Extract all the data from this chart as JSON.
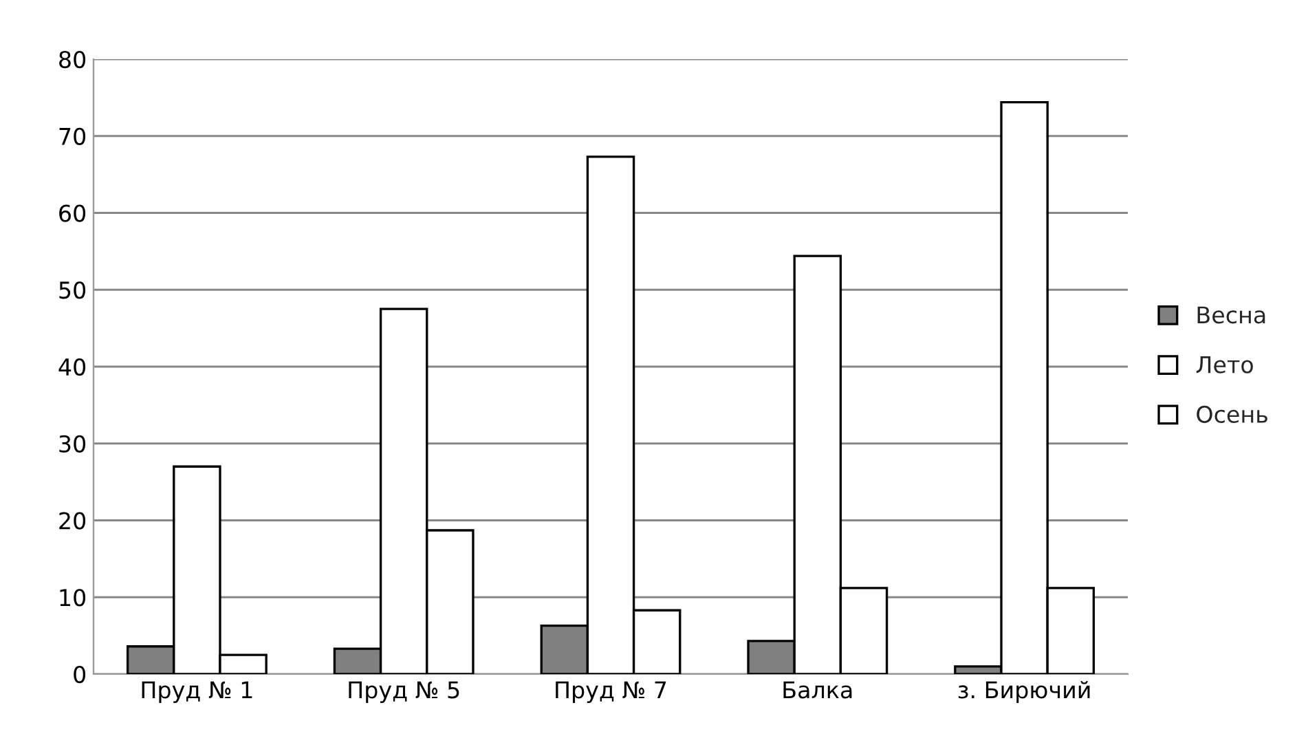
{
  "chart_data": {
    "type": "bar",
    "categories": [
      "Пруд № 1",
      "Пруд № 5",
      "Пруд № 7",
      "Балка",
      "з. Бирючий"
    ],
    "series": [
      {
        "name": "Весна",
        "color": "#808080",
        "values": [
          3.6,
          3.3,
          6.3,
          4.3,
          1.0
        ]
      },
      {
        "name": "Лето",
        "color": "#ffffff",
        "values": [
          27.0,
          47.5,
          67.3,
          54.4,
          74.4
        ]
      },
      {
        "name": "Осень",
        "color": "#ffffff",
        "values": [
          2.5,
          18.7,
          8.3,
          11.2,
          11.2
        ]
      }
    ],
    "ylim": [
      0,
      80
    ],
    "yticks": [
      0,
      10,
      20,
      30,
      40,
      50,
      60,
      70,
      80
    ],
    "grid": "y",
    "legend": "right"
  }
}
